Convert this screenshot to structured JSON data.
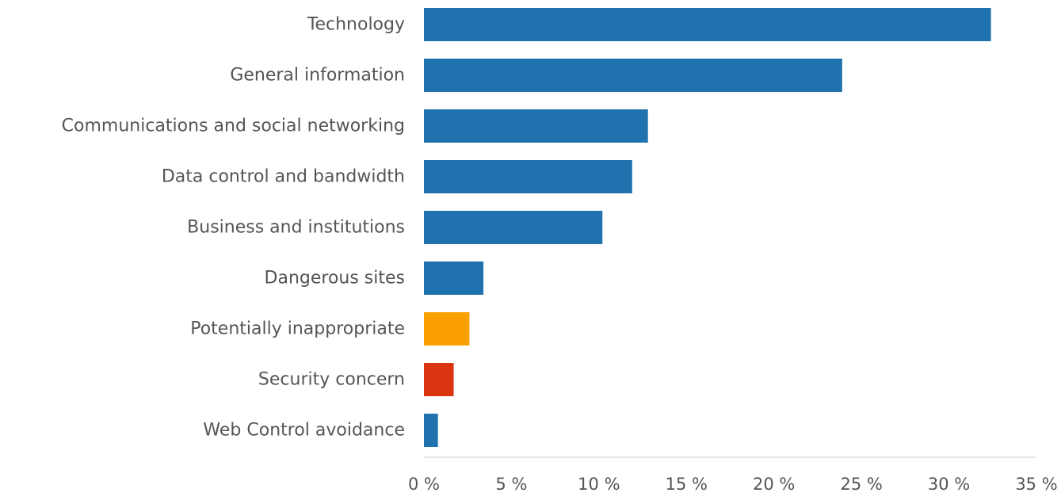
{
  "chart_data": {
    "type": "bar",
    "orientation": "horizontal",
    "title": "",
    "xlabel": "",
    "ylabel": "",
    "xlim": [
      0,
      35
    ],
    "grid": false,
    "legend": "none",
    "tick_values": [
      0,
      5,
      10,
      15,
      20,
      25,
      30,
      35
    ],
    "tick_labels": [
      "0 %",
      "5 %",
      "10 %",
      "15 %",
      "20 %",
      "25 %",
      "30 %",
      "35 %"
    ],
    "categories": [
      "Technology",
      "General information",
      "Communications and social networking",
      "Data control and bandwidth",
      "Business and institutions",
      "Dangerous sites",
      "Potentially inappropriate",
      "Security concern",
      "Web Control avoidance"
    ],
    "values": [
      32.4,
      23.9,
      12.8,
      11.9,
      10.2,
      3.4,
      2.6,
      1.7,
      0.8
    ],
    "colors": [
      "#1f72ad",
      "#1f72ad",
      "#1f72ad",
      "#1f72ad",
      "#1f72ad",
      "#1f72ad",
      "#f99f00",
      "#d93510",
      "#1f72ad"
    ],
    "axis_color": "#cccccc"
  }
}
